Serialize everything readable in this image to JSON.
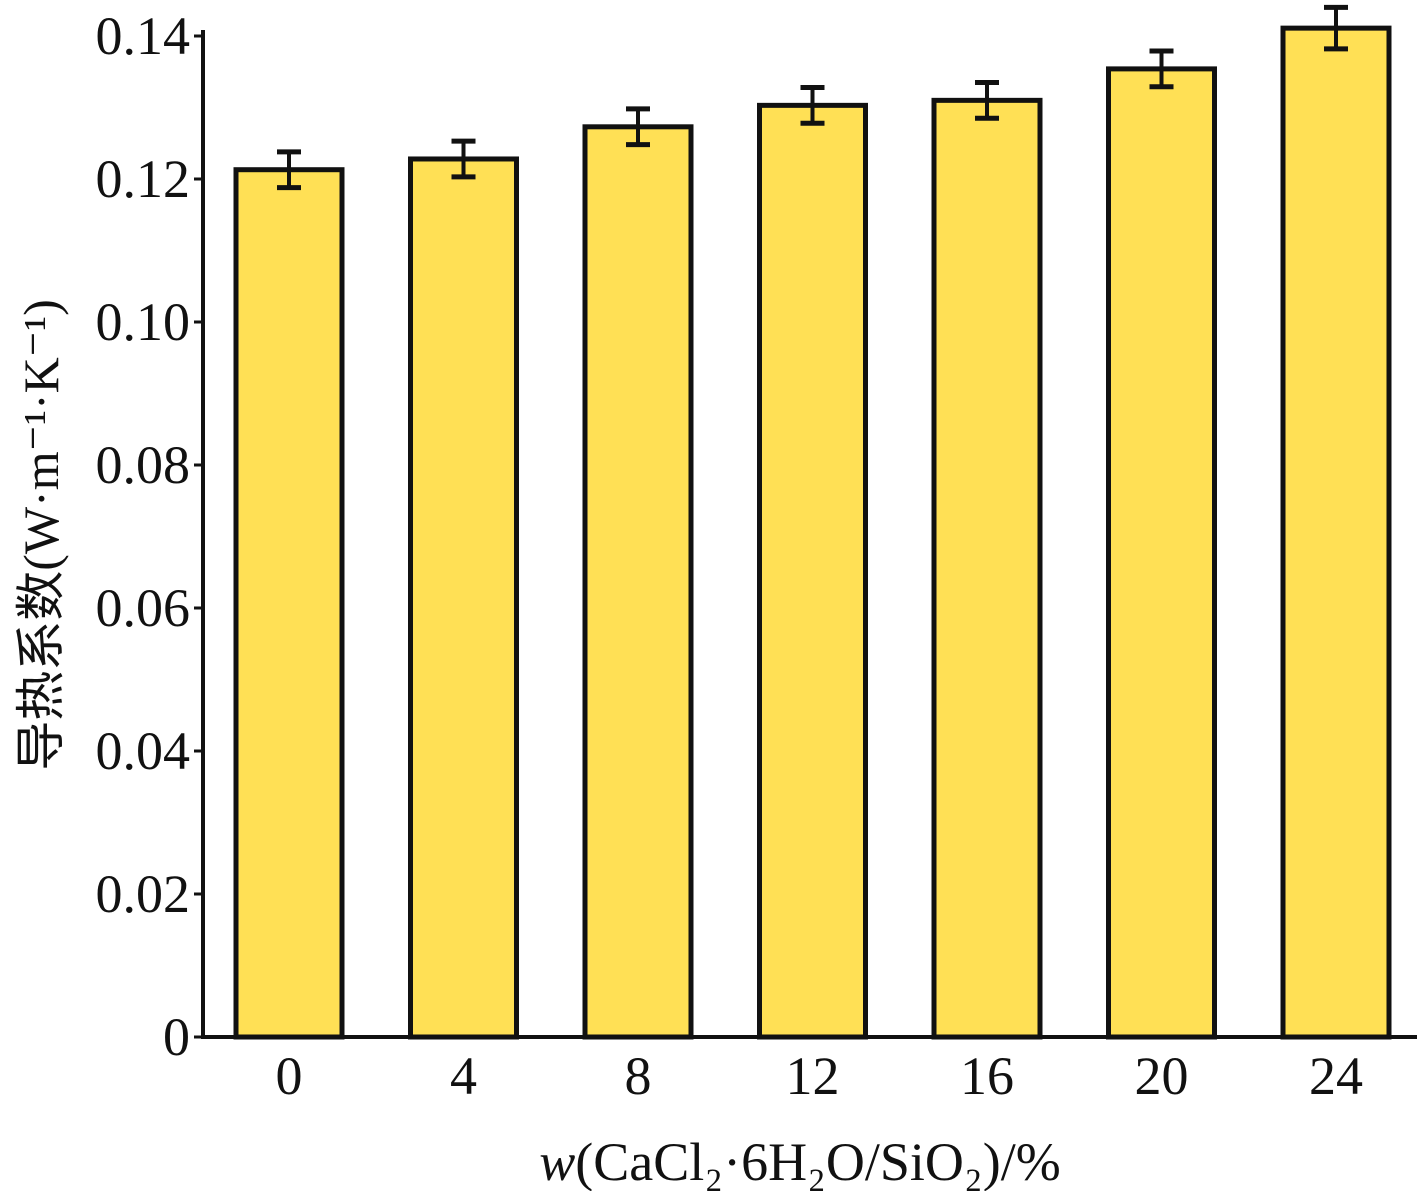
{
  "chart_data": {
    "type": "bar",
    "title": "",
    "categories": [
      "0",
      "4",
      "8",
      "12",
      "16",
      "20",
      "24"
    ],
    "values": [
      0.1213,
      0.1228,
      0.1273,
      0.1303,
      0.131,
      0.1354,
      0.1411
    ],
    "errors": [
      0.0025,
      0.0025,
      0.0025,
      0.0025,
      0.0025,
      0.0025,
      0.0029
    ],
    "xlabel_var": "w",
    "xlabel_rest": "(CaCl₂·6H₂O/SiO₂)/%",
    "xlabel": "w(CaCl₂·6H₂O/SiO₂)/%",
    "ylabel": "导热系数(W·m⁻¹·K⁻¹)",
    "ylim": [
      0,
      0.14
    ],
    "yticks": [
      "0",
      "0.02",
      "0.04",
      "0.06",
      "0.08",
      "0.10",
      "0.12",
      "0.14"
    ],
    "grid": false,
    "bar_color": "#FFE055",
    "edge_color": "#111111"
  }
}
